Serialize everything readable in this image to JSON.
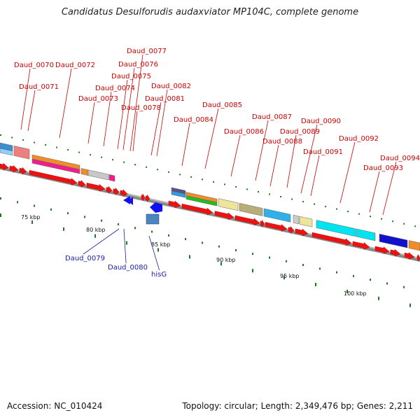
{
  "title": "Candidatus Desulforudis audaxviator MP104C, complete genome",
  "footer": {
    "accession": "Accession: NC_010424",
    "summary": "Topology: circular; Length: 2,349,476 bp; Genes: 2,211"
  },
  "colors": {
    "forward_gene": "#ee1111",
    "reverse_gene": "#1111ee",
    "label_top": "#cc0000",
    "label_bottom": "#1a1aaa",
    "backbone": "#888888",
    "tick": "#1e7a1e"
  },
  "top_labels": [
    {
      "text": "Daud_0070"
    },
    {
      "text": "Daud_0071"
    },
    {
      "text": "Daud_0072"
    },
    {
      "text": "Daud_0073"
    },
    {
      "text": "Daud_0074"
    },
    {
      "text": "Daud_0075"
    },
    {
      "text": "Daud_0076"
    },
    {
      "text": "Daud_0077"
    },
    {
      "text": "Daud_0078"
    },
    {
      "text": "Daud_0081"
    },
    {
      "text": "Daud_0082"
    },
    {
      "text": "Daud_0084"
    },
    {
      "text": "Daud_0085"
    },
    {
      "text": "Daud_0086"
    },
    {
      "text": "Daud_0087"
    },
    {
      "text": "Daud_0088"
    },
    {
      "text": "Daud_0089"
    },
    {
      "text": "Daud_0090"
    },
    {
      "text": "Daud_0091"
    },
    {
      "text": "Daud_0092"
    },
    {
      "text": "Daud_0093"
    },
    {
      "text": "Daud_0094"
    }
  ],
  "bottom_labels": [
    {
      "text": "Daud_0079"
    },
    {
      "text": "Daud_0080"
    },
    {
      "text": "hisG"
    }
  ],
  "scale_labels": [
    "75 kbp",
    "80 kbp",
    "85 kbp",
    "90 kbp",
    "95 kbp",
    "100 kbp"
  ]
}
